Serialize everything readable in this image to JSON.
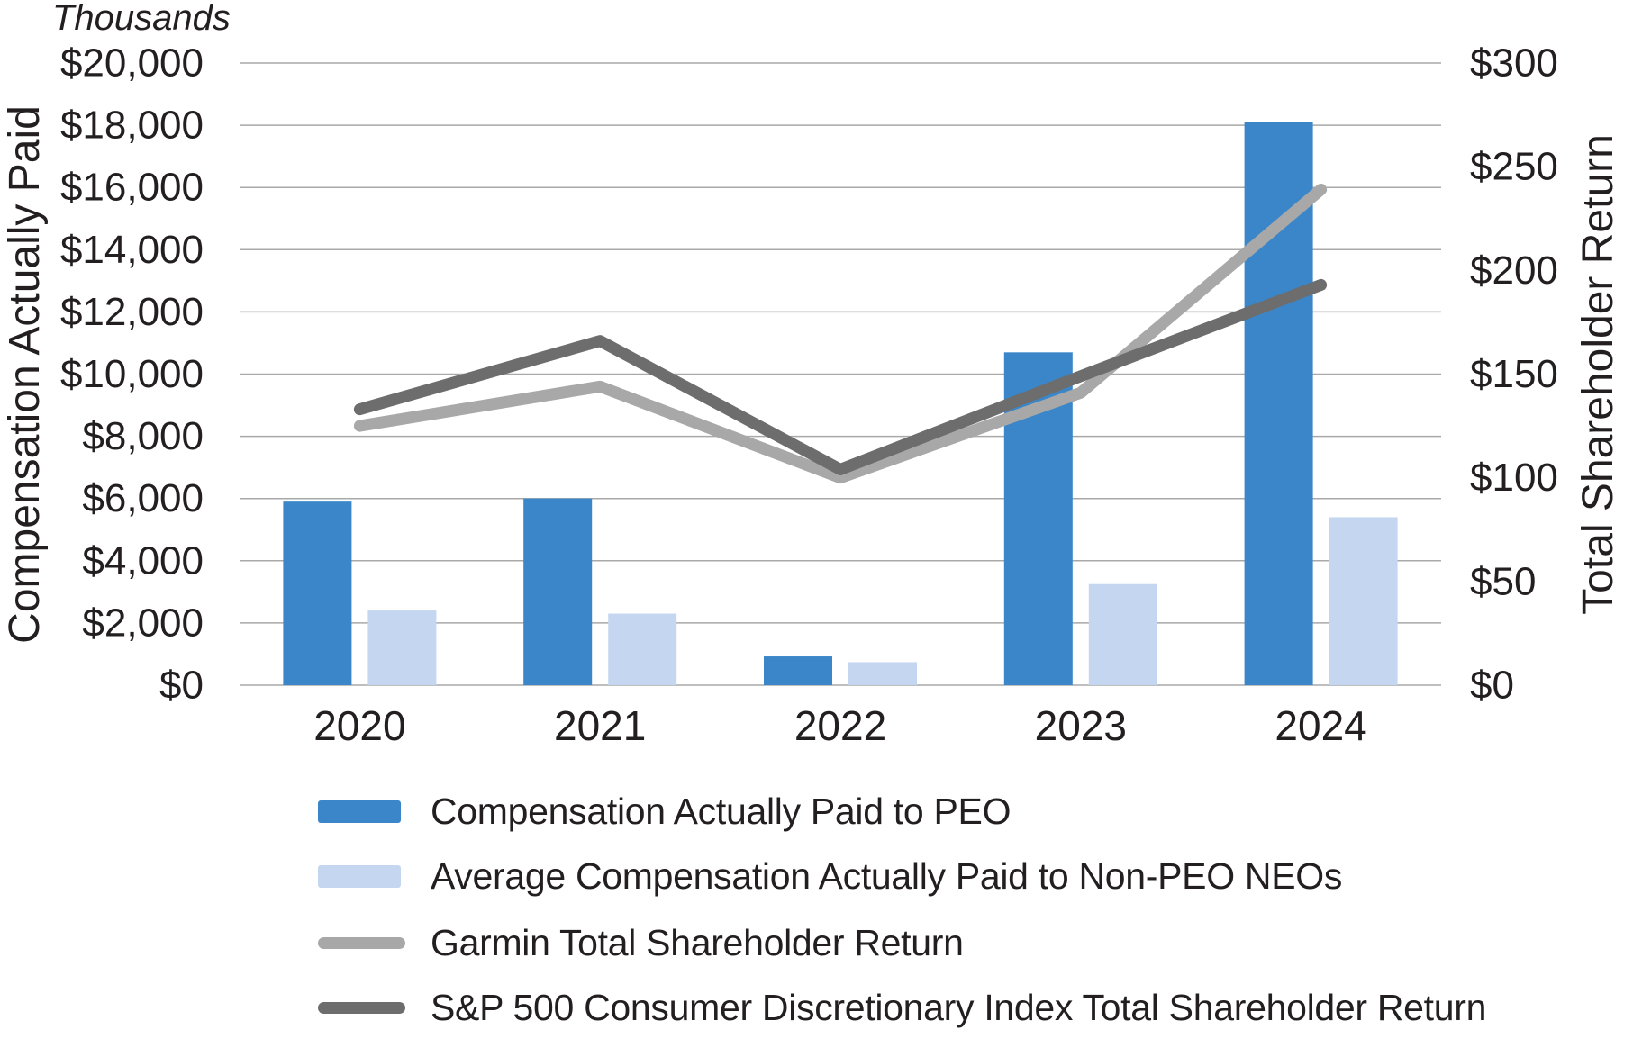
{
  "chart_data": {
    "type": "combo_bar_line",
    "categories": [
      "2020",
      "2021",
      "2022",
      "2023",
      "2024"
    ],
    "bar_series": [
      {
        "name": "Compensation Actually Paid to PEO",
        "color": "#3a86c8",
        "axis": "left",
        "values": [
          5900,
          6000,
          925,
          10700,
          18090
        ]
      },
      {
        "name": "Average Compensation Actually Paid to Non-PEO NEOs",
        "color": "#c5d7f0",
        "axis": "left",
        "values": [
          2400,
          2300,
          740,
          3250,
          5400
        ]
      }
    ],
    "line_series": [
      {
        "name": "Garmin Total Shareholder Return",
        "color": "#a8a8a8",
        "axis": "right",
        "values": [
          125,
          144,
          100,
          141,
          239
        ]
      },
      {
        "name": "S&P 500 Consumer Discretionary Index Total Shareholder Return",
        "color": "#6d6d6d",
        "axis": "right",
        "values": [
          133,
          166,
          104,
          149,
          193
        ]
      }
    ],
    "left_axis": {
      "title": "Compensation Actually Paid",
      "units_label": "Thousands",
      "min": 0,
      "max": 20000,
      "step": 2000,
      "tick_labels": [
        "$0",
        "$2,000",
        "$4,000",
        "$6,000",
        "$8,000",
        "$10,000",
        "$12,000",
        "$14,000",
        "$16,000",
        "$18,000",
        "$20,000"
      ]
    },
    "right_axis": {
      "title": "Total Shareholder Return",
      "min": 0,
      "max": 300,
      "step": 50,
      "tick_labels": [
        "$0",
        "$50",
        "$100",
        "$150",
        "$200",
        "$250",
        "$300"
      ]
    },
    "grid": "horizontal",
    "gridline_color": "#a9a9a9",
    "text_color": "#231f20",
    "legend_position": "bottom-left"
  }
}
